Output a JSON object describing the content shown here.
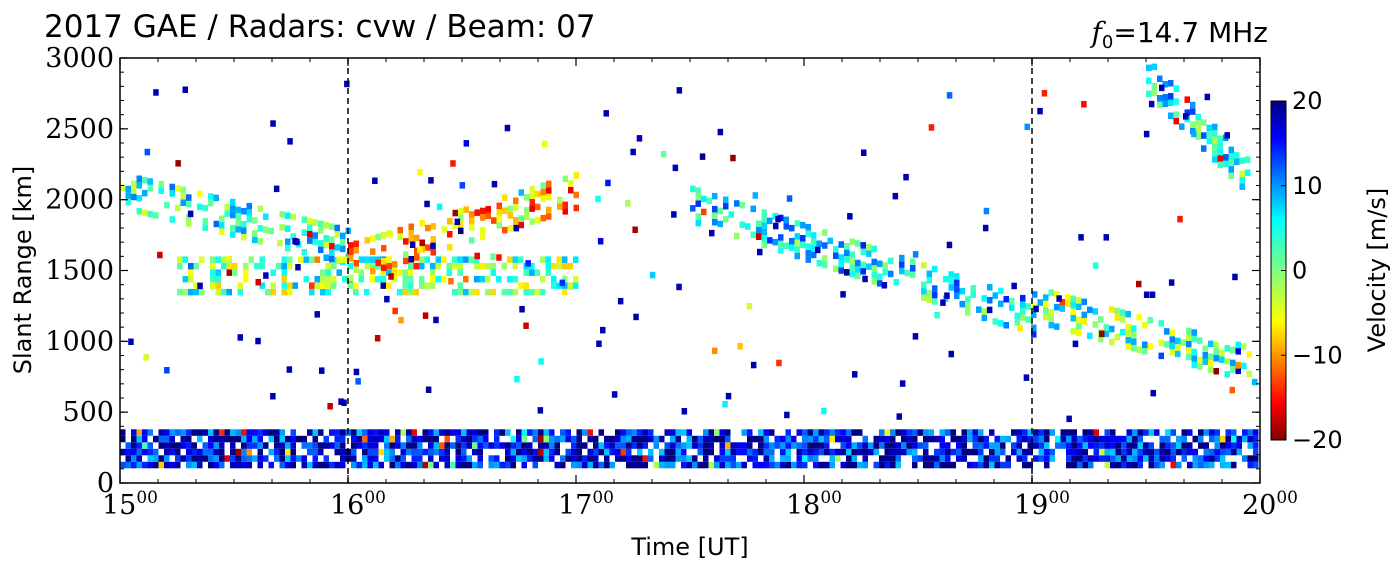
{
  "chart_data": {
    "type": "heatmap",
    "title": "2017 GAE / Radars: cvw / Beam: 07",
    "frequency_label": {
      "symbol": "f",
      "subscript": "0",
      "text": "=14.7 MHz"
    },
    "xlabel": "Time [UT]",
    "ylabel": "Slant Range [km]",
    "xlim_hours": [
      15,
      20
    ],
    "ylim": [
      0,
      3000
    ],
    "x_ticks": [
      {
        "hour": "15",
        "minute": "00"
      },
      {
        "hour": "16",
        "minute": "00"
      },
      {
        "hour": "17",
        "minute": "00"
      },
      {
        "hour": "18",
        "minute": "00"
      },
      {
        "hour": "19",
        "minute": "00"
      },
      {
        "hour": "20",
        "minute": "00"
      }
    ],
    "y_ticks": [
      "0",
      "500",
      "1000",
      "1500",
      "2000",
      "2500",
      "3000"
    ],
    "dashed_time_markers": [
      "16:00",
      "19:00"
    ],
    "colorbar": {
      "label": "Velocity [m/s]",
      "range": [
        -20,
        20
      ],
      "ticks": [
        "20",
        "10",
        "0",
        "−10",
        "−20"
      ],
      "colormap": "jet_r"
    },
    "scatter_regions": [
      {
        "name": "ground scatter band",
        "t_start": "15:00",
        "t_end": "20:00",
        "range_km": [
          150,
          420
        ],
        "velocity_ms": 15
      },
      {
        "name": "ionospheric echo 1 upper",
        "t_start": "15:00",
        "t_end": "16:00",
        "range_km_start": 2100,
        "range_km_end": 1700,
        "velocity_ms": 3
      },
      {
        "name": "ionospheric echo 1 lower",
        "t_start": "15:15",
        "t_end": "17:00",
        "range_km_start": 1500,
        "range_km_end": 1500,
        "velocity_ms": 1
      },
      {
        "name": "ionospheric echo rising",
        "t_start": "16:00",
        "t_end": "17:00",
        "range_km_start": 1600,
        "range_km_end": 2100,
        "velocity_ms": -8
      },
      {
        "name": "ionospheric echo 2",
        "t_start": "17:30",
        "t_end": "19:00",
        "range_km_start": 2000,
        "range_km_end": 1200,
        "velocity_ms": 6
      },
      {
        "name": "ionospheric echo 3",
        "t_start": "19:00",
        "t_end": "20:00",
        "range_km_start": 1300,
        "range_km_end": 850,
        "velocity_ms": 2
      },
      {
        "name": "upper right echo",
        "t_start": "19:30",
        "t_end": "20:00",
        "range_km_start": 2900,
        "range_km_end": 2100,
        "velocity_ms": 5
      }
    ]
  }
}
